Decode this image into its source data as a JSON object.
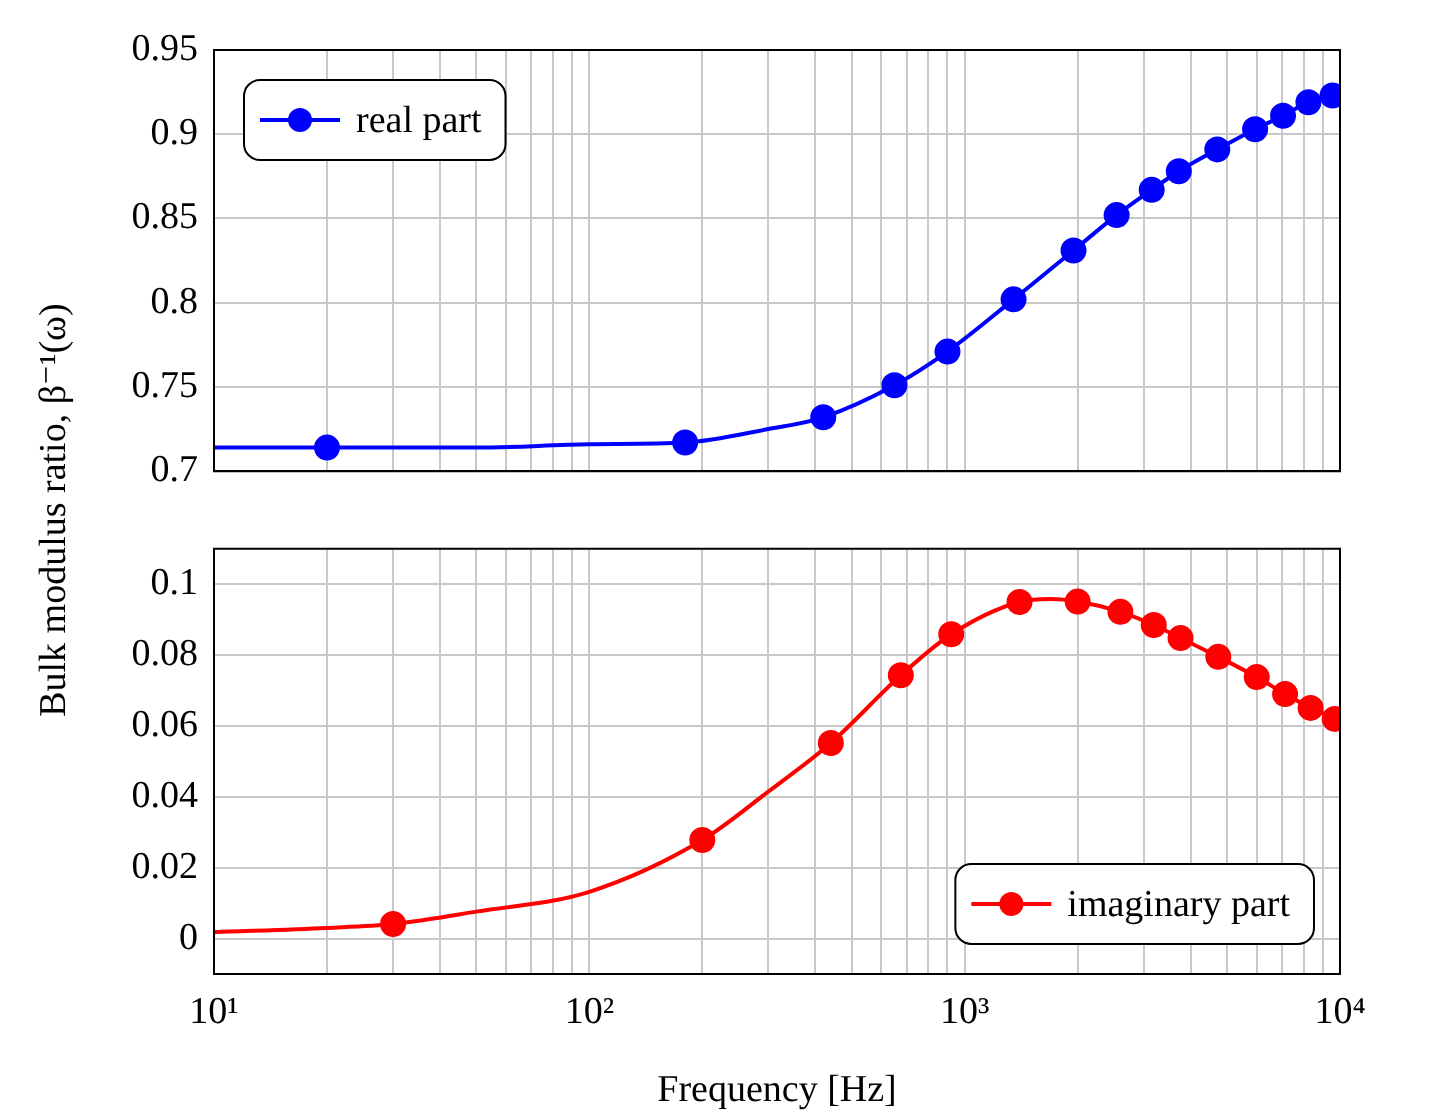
{
  "chart_data": [
    {
      "type": "line",
      "ylabel": "Bulk modulus ratio, β⁻¹(ω)",
      "log": "x",
      "grid": true,
      "legend": "top left",
      "tick_labels": "y",
      "xlim": [
        10,
        10000
      ],
      "xticks": [
        {
          "value": 10,
          "label": null
        },
        {
          "value": 20,
          "label": null
        },
        {
          "value": 30,
          "label": null
        },
        {
          "value": 40,
          "label": null
        },
        {
          "value": 50,
          "label": null
        },
        {
          "value": 60,
          "label": null
        },
        {
          "value": 70,
          "label": null
        },
        {
          "value": 80,
          "label": null
        },
        {
          "value": 90,
          "label": null
        },
        {
          "value": 100,
          "label": null
        },
        {
          "value": 200,
          "label": null
        },
        {
          "value": 300,
          "label": null
        },
        {
          "value": 400,
          "label": null
        },
        {
          "value": 500,
          "label": null
        },
        {
          "value": 600,
          "label": null
        },
        {
          "value": 700,
          "label": null
        },
        {
          "value": 800,
          "label": null
        },
        {
          "value": 900,
          "label": null
        },
        {
          "value": 1000,
          "label": null
        },
        {
          "value": 2000,
          "label": null
        },
        {
          "value": 3000,
          "label": null
        },
        {
          "value": 4000,
          "label": null
        },
        {
          "value": 5000,
          "label": null
        },
        {
          "value": 6000,
          "label": null
        },
        {
          "value": 7000,
          "label": null
        },
        {
          "value": 8000,
          "label": null
        },
        {
          "value": 9000,
          "label": null
        },
        {
          "value": 10000,
          "label": null
        }
      ],
      "ylim": [
        0.7,
        0.95
      ],
      "yticks": [
        0.7,
        0.75,
        0.8,
        0.85,
        0.9,
        0.95
      ],
      "series": [
        {
          "type": "line",
          "marker": "none",
          "color": "#0000ff",
          "x": [
            10,
            20,
            50,
            100,
            180,
            300,
            420,
            650,
            900,
            1350,
            1950,
            2540,
            3150,
            3720,
            4710,
            5940,
            7050,
            8240,
            10000
          ],
          "values": [
            0.714,
            0.714,
            0.714,
            0.716,
            0.717,
            0.725,
            0.732,
            0.751,
            0.771,
            0.802,
            0.831,
            0.852,
            0.867,
            0.878,
            0.891,
            0.903,
            0.911,
            0.919,
            0.924
          ]
        },
        {
          "type": "scatter",
          "name": "real part",
          "marker": "circle",
          "color": "#0000ff",
          "x": [
            20,
            180,
            420,
            650,
            900,
            1350,
            1950,
            2540,
            3150,
            3720,
            4710,
            5940,
            7050,
            8240,
            9550
          ],
          "values": [
            0.714,
            0.717,
            0.732,
            0.751,
            0.771,
            0.802,
            0.831,
            0.852,
            0.867,
            0.878,
            0.891,
            0.903,
            0.911,
            0.919,
            0.923
          ]
        }
      ]
    },
    {
      "type": "line",
      "xlabel": "Frequency [Hz]",
      "log": "x",
      "grid": true,
      "legend": "bottom right",
      "xlim": [
        10,
        10000
      ],
      "xticks": [
        {
          "value": 10,
          "label": "10¹"
        },
        {
          "value": 20,
          "label": null
        },
        {
          "value": 30,
          "label": null
        },
        {
          "value": 40,
          "label": null
        },
        {
          "value": 50,
          "label": null
        },
        {
          "value": 60,
          "label": null
        },
        {
          "value": 70,
          "label": null
        },
        {
          "value": 80,
          "label": null
        },
        {
          "value": 90,
          "label": null
        },
        {
          "value": 100,
          "label": "10²"
        },
        {
          "value": 200,
          "label": null
        },
        {
          "value": 300,
          "label": null
        },
        {
          "value": 400,
          "label": null
        },
        {
          "value": 500,
          "label": null
        },
        {
          "value": 600,
          "label": null
        },
        {
          "value": 700,
          "label": null
        },
        {
          "value": 800,
          "label": null
        },
        {
          "value": 900,
          "label": null
        },
        {
          "value": 1000,
          "label": "10³"
        },
        {
          "value": 2000,
          "label": null
        },
        {
          "value": 3000,
          "label": null
        },
        {
          "value": 4000,
          "label": null
        },
        {
          "value": 5000,
          "label": null
        },
        {
          "value": 6000,
          "label": null
        },
        {
          "value": 7000,
          "label": null
        },
        {
          "value": 8000,
          "label": null
        },
        {
          "value": 9000,
          "label": null
        },
        {
          "value": 10000,
          "label": "10⁴"
        }
      ],
      "ylim": [
        -0.01,
        0.11
      ],
      "yticks": [
        0,
        0.02,
        0.04,
        0.06,
        0.08,
        0.1
      ],
      "series": [
        {
          "type": "line",
          "marker": "none",
          "color": "#ff0000",
          "x": [
            10,
            20,
            30,
            50,
            100,
            200,
            300,
            440,
            676,
            921,
            1400,
            1700,
            2000,
            2600,
            3190,
            3760,
            4740,
            6000,
            7140,
            8350,
            10000
          ],
          "values": [
            0.0018,
            0.003,
            0.0041,
            0.0076,
            0.0132,
            0.0278,
            0.0415,
            0.0552,
            0.0743,
            0.0859,
            0.095,
            0.0958,
            0.0951,
            0.0922,
            0.0885,
            0.0848,
            0.0795,
            0.0738,
            0.069,
            0.0651,
            0.0615
          ]
        },
        {
          "type": "scatter",
          "name": "imaginary part",
          "marker": "circle",
          "color": "#ff0000",
          "x": [
            30,
            200,
            440,
            676,
            921,
            1400,
            2000,
            2600,
            3190,
            3760,
            4740,
            6000,
            7140,
            8350,
            9680
          ],
          "values": [
            0.0041,
            0.0278,
            0.0552,
            0.0743,
            0.0859,
            0.095,
            0.0951,
            0.0922,
            0.0885,
            0.0848,
            0.0795,
            0.0738,
            0.069,
            0.0651,
            0.062
          ]
        }
      ]
    }
  ]
}
